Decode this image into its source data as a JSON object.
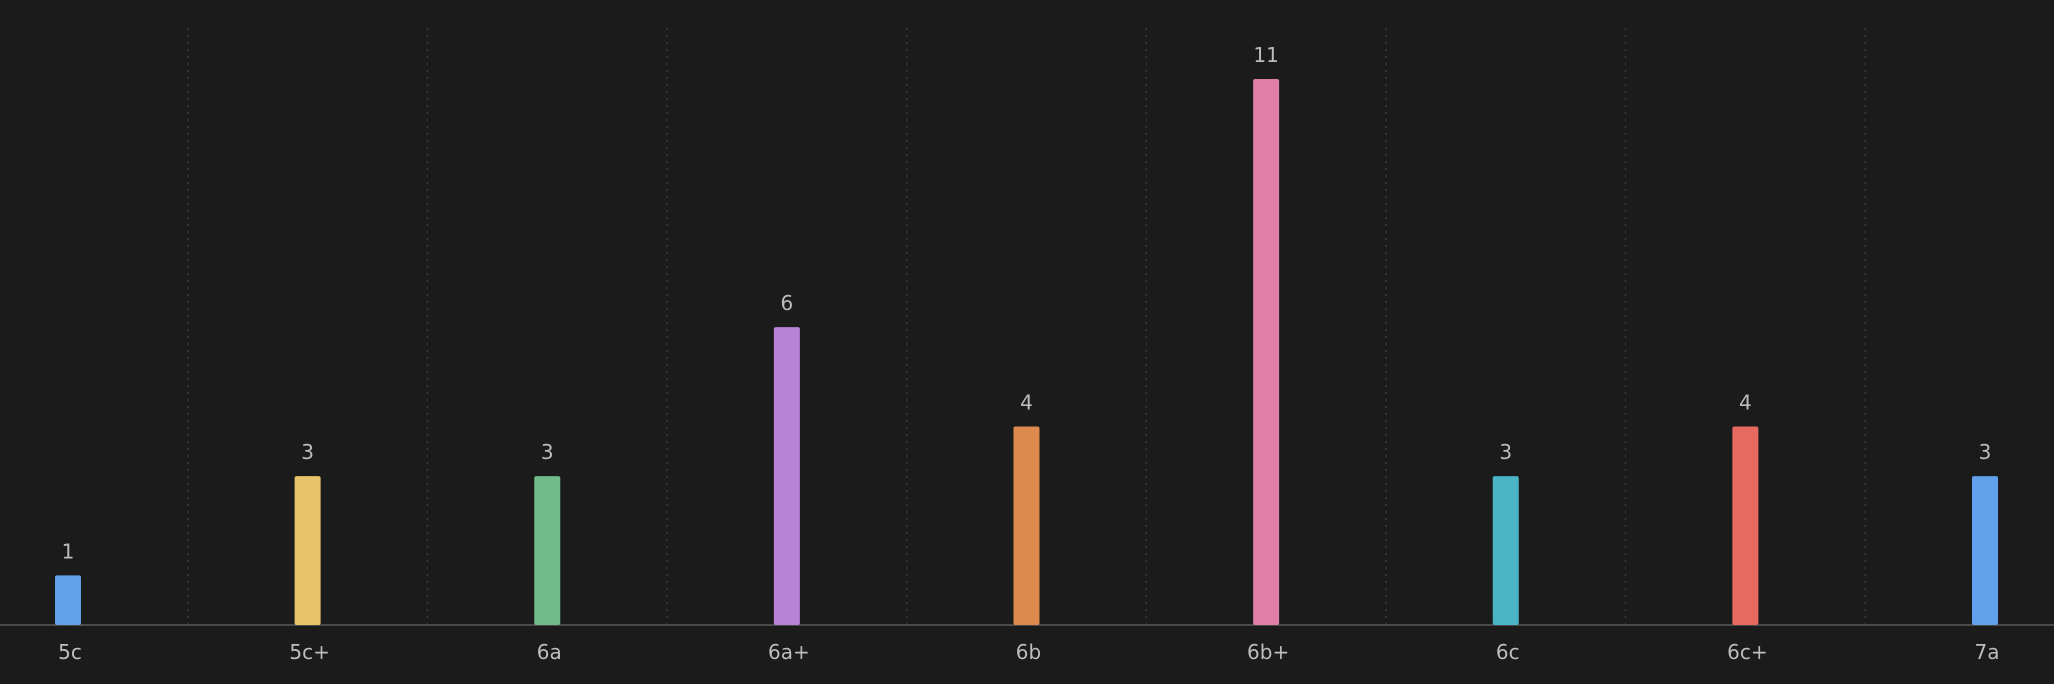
{
  "chart_data": {
    "type": "bar",
    "categories": [
      "5c",
      "5c+",
      "6a",
      "6a+",
      "6b",
      "6b+",
      "6c",
      "6c+",
      "7a"
    ],
    "values": [
      1,
      3,
      3,
      6,
      4,
      11,
      3,
      4,
      3
    ],
    "colors": [
      "#61a0ea",
      "#eac46a",
      "#6fbb8a",
      "#b882d8",
      "#dc8a4e",
      "#df7fa5",
      "#4ab3c6",
      "#e66a5f",
      "#61a0ea"
    ],
    "ylim": [
      0,
      12
    ],
    "grid": "vertical-dotted",
    "legend": "none"
  }
}
